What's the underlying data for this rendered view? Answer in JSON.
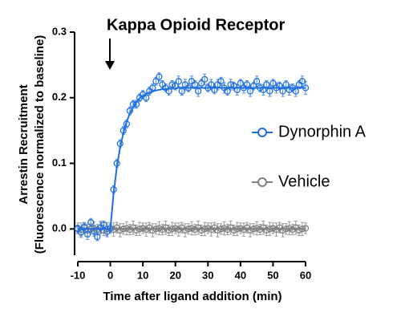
{
  "chart_data": {
    "type": "scatter",
    "title": "Kappa Opioid Receptor",
    "xlabel": "Time after ligand addition (min)",
    "ylabel": [
      "Arrestin Recruitment",
      "(Fluorescence normalized to baseline)"
    ],
    "xlim": [
      -10,
      60
    ],
    "ylim": [
      -0.04,
      0.3
    ],
    "xticks": [
      -10,
      0,
      10,
      20,
      30,
      40,
      50,
      60
    ],
    "yticks": [
      {
        "value": 0,
        "label": "0.0"
      },
      0.1,
      0.2,
      0.3
    ],
    "legend": "right",
    "x": [
      -10,
      -9,
      -8,
      -7,
      -6,
      -5,
      -4,
      -3,
      -2,
      -1,
      0,
      1,
      2,
      3,
      4,
      5,
      6,
      7,
      8,
      9,
      10,
      11,
      12,
      13,
      14,
      15,
      16,
      17,
      18,
      19,
      20,
      21,
      22,
      23,
      24,
      25,
      26,
      27,
      28,
      29,
      30,
      31,
      32,
      33,
      34,
      35,
      36,
      37,
      38,
      39,
      40,
      41,
      42,
      43,
      44,
      45,
      46,
      47,
      48,
      49,
      50,
      51,
      52,
      53,
      54,
      55,
      56,
      57,
      58,
      59,
      60
    ],
    "series": [
      {
        "name": "Dynorphin A",
        "color": "#1f6fe0",
        "values": [
          0,
          -0.005,
          0.003,
          -0.008,
          0.01,
          -0.003,
          -0.012,
          0.002,
          0.006,
          -0.004,
          0.001,
          0.06,
          0.1,
          0.13,
          0.15,
          0.16,
          0.18,
          0.19,
          0.19,
          0.2,
          0.205,
          0.2,
          0.21,
          0.215,
          0.225,
          0.232,
          0.22,
          0.215,
          0.21,
          0.22,
          0.218,
          0.225,
          0.21,
          0.22,
          0.215,
          0.225,
          0.22,
          0.21,
          0.222,
          0.228,
          0.215,
          0.22,
          0.212,
          0.22,
          0.225,
          0.215,
          0.21,
          0.22,
          0.218,
          0.212,
          0.222,
          0.215,
          0.22,
          0.21,
          0.218,
          0.225,
          0.215,
          0.212,
          0.22,
          0.21,
          0.222,
          0.215,
          0.218,
          0.21,
          0.22,
          0.212,
          0.215,
          0.21,
          0.22,
          0.225,
          0.215
        ],
        "errors": [
          0.006,
          0.008,
          0.006,
          0.008,
          0.006,
          0.008,
          0.006,
          0.008,
          0.006,
          0.008,
          0.006,
          0.006,
          0.006,
          0.006,
          0.006,
          0.006,
          0.006,
          0.006,
          0.006,
          0.006,
          0.006,
          0.006,
          0.006,
          0.006,
          0.006,
          0.006,
          0.006,
          0.006,
          0.006,
          0.006,
          0.006,
          0.008,
          0.006,
          0.008,
          0.006,
          0.008,
          0.006,
          0.008,
          0.006,
          0.008,
          0.006,
          0.008,
          0.006,
          0.008,
          0.006,
          0.008,
          0.006,
          0.008,
          0.006,
          0.008,
          0.006,
          0.008,
          0.006,
          0.008,
          0.006,
          0.008,
          0.006,
          0.008,
          0.006,
          0.008,
          0.006,
          0.008,
          0.006,
          0.008,
          0.006,
          0.008,
          0.006,
          0.008,
          0.006,
          0.008,
          0.01
        ],
        "fit": [
          0,
          0,
          0,
          0,
          0,
          0,
          0,
          0,
          0,
          0,
          0,
          0.054,
          0.094,
          0.124,
          0.146,
          0.163,
          0.176,
          0.186,
          0.193,
          0.199,
          0.203,
          0.206,
          0.208,
          0.21,
          0.211,
          0.212,
          0.213,
          0.213,
          0.214,
          0.214,
          0.214,
          0.215,
          0.215,
          0.215,
          0.215,
          0.215,
          0.215,
          0.215,
          0.215,
          0.215,
          0.215,
          0.215,
          0.215,
          0.215,
          0.215,
          0.215,
          0.215,
          0.215,
          0.215,
          0.215,
          0.215,
          0.215,
          0.215,
          0.215,
          0.215,
          0.215,
          0.215,
          0.215,
          0.215,
          0.215,
          0.215,
          0.215,
          0.215,
          0.215,
          0.215,
          0.215,
          0.215,
          0.215,
          0.215,
          0.215,
          0.215
        ]
      },
      {
        "name": "Vehicle",
        "color": "#808080",
        "values": [
          0.001,
          -0.001,
          0.002,
          -0.002,
          0,
          0.001,
          -0.001,
          0.002,
          -0.002,
          0,
          0.001,
          -0.001,
          0.002,
          -0.002,
          0,
          0.001,
          -0.001,
          0.002,
          -0.002,
          0,
          0.001,
          -0.001,
          0.002,
          -0.002,
          0,
          0.001,
          -0.001,
          0.002,
          -0.002,
          0,
          0.001,
          -0.001,
          0.002,
          -0.002,
          0,
          0.001,
          -0.001,
          0.002,
          -0.002,
          0,
          0.001,
          -0.001,
          0.002,
          -0.002,
          0,
          0.001,
          -0.001,
          0.002,
          -0.002,
          0,
          0.001,
          -0.001,
          0.002,
          -0.002,
          0,
          0.001,
          -0.001,
          0.002,
          -0.002,
          0,
          0.001,
          -0.001,
          0.002,
          -0.002,
          0,
          0.001,
          -0.001,
          0.002,
          -0.002,
          0,
          0.001
        ],
        "errors": [
          0.008,
          0.01,
          0.008,
          0.01,
          0.008,
          0.01,
          0.008,
          0.01,
          0.008,
          0.01,
          0.008,
          0.01,
          0.008,
          0.01,
          0.008,
          0.01,
          0.008,
          0.01,
          0.008,
          0.01,
          0.008,
          0.01,
          0.008,
          0.01,
          0.008,
          0.01,
          0.008,
          0.01,
          0.008,
          0.01,
          0.008,
          0.01,
          0.008,
          0.01,
          0.008,
          0.01,
          0.008,
          0.01,
          0.008,
          0.01,
          0.008,
          0.01,
          0.008,
          0.01,
          0.008,
          0.01,
          0.008,
          0.01,
          0.008,
          0.01,
          0.008,
          0.01,
          0.008,
          0.01,
          0.008,
          0.01,
          0.008,
          0.01,
          0.008,
          0.01,
          0.008,
          0.01,
          0.008,
          0.01,
          0.008,
          0.01,
          0.008,
          0.01,
          0.008,
          0.01,
          0.008
        ],
        "fit": [
          0,
          0,
          0,
          0,
          0,
          0,
          0,
          0,
          0,
          0,
          0,
          0,
          0,
          0,
          0,
          0,
          0,
          0,
          0,
          0,
          0,
          0,
          0,
          0,
          0,
          0,
          0,
          0,
          0,
          0,
          0,
          0,
          0,
          0,
          0,
          0,
          0,
          0,
          0,
          0,
          0,
          0,
          0,
          0,
          0,
          0,
          0,
          0,
          0,
          0,
          0,
          0,
          0,
          0,
          0,
          0,
          0,
          0,
          0,
          0,
          0,
          0,
          0,
          0,
          0,
          0,
          0,
          0,
          0,
          0,
          0
        ]
      }
    ]
  }
}
